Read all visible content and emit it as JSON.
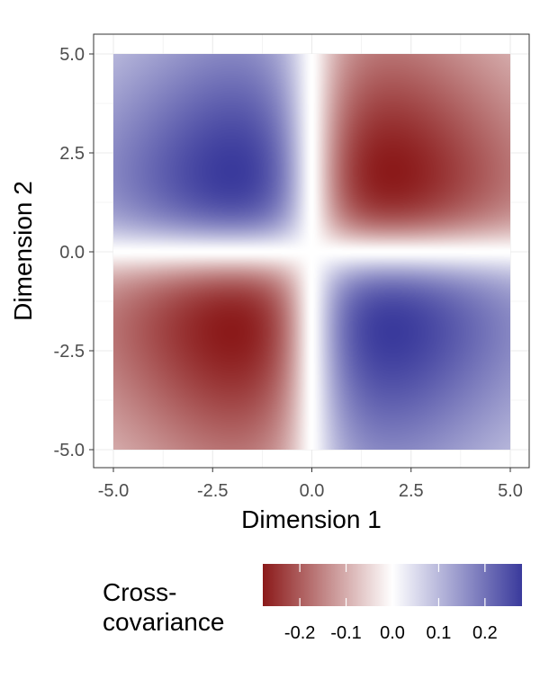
{
  "chart_data": {
    "type": "heatmap",
    "title": "",
    "xlabel": "Dimension 1",
    "ylabel": "Dimension 2",
    "xlim": [
      -5,
      5
    ],
    "ylim": [
      -5,
      5
    ],
    "x_ticks": [
      "-5.0",
      "-2.5",
      "0.0",
      "2.5",
      "5.0"
    ],
    "y_ticks": [
      "5.0",
      "2.5",
      "0.0",
      "-2.5",
      "-5.0"
    ],
    "x_tick_values": [
      -5,
      -2.5,
      0,
      2.5,
      5
    ],
    "y_tick_values": [
      5,
      2.5,
      0,
      -2.5,
      -5
    ],
    "grid": true,
    "surface": {
      "description": "cross-covariance surface: positive (blue) where Dimension 1 and Dimension 2 have opposite sign, negative (red) where same sign",
      "peak_value": 0.28,
      "peak_locations": [
        [
          2,
          2
        ],
        [
          -2,
          2
        ],
        [
          2,
          -2
        ],
        [
          -2,
          -2
        ]
      ],
      "sign_rule": "value = -peak * sign(x*y) * f(|x|) * f(|y|)"
    },
    "legend": {
      "title_line1": "Cross-",
      "title_line2": "covariance",
      "placement": "bottom",
      "range": [
        -0.28,
        0.28
      ],
      "tick_values": [
        -0.2,
        -0.1,
        0.0,
        0.1,
        0.2
      ],
      "tick_labels": [
        "-0.2",
        "-0.1",
        "0.0",
        "0.1",
        "0.2"
      ]
    },
    "colors": {
      "negative": "#8b1a1a",
      "zero": "#ffffff",
      "positive": "#3a3a9c",
      "panel_border": "#333333",
      "grid": "#ebebeb"
    }
  }
}
